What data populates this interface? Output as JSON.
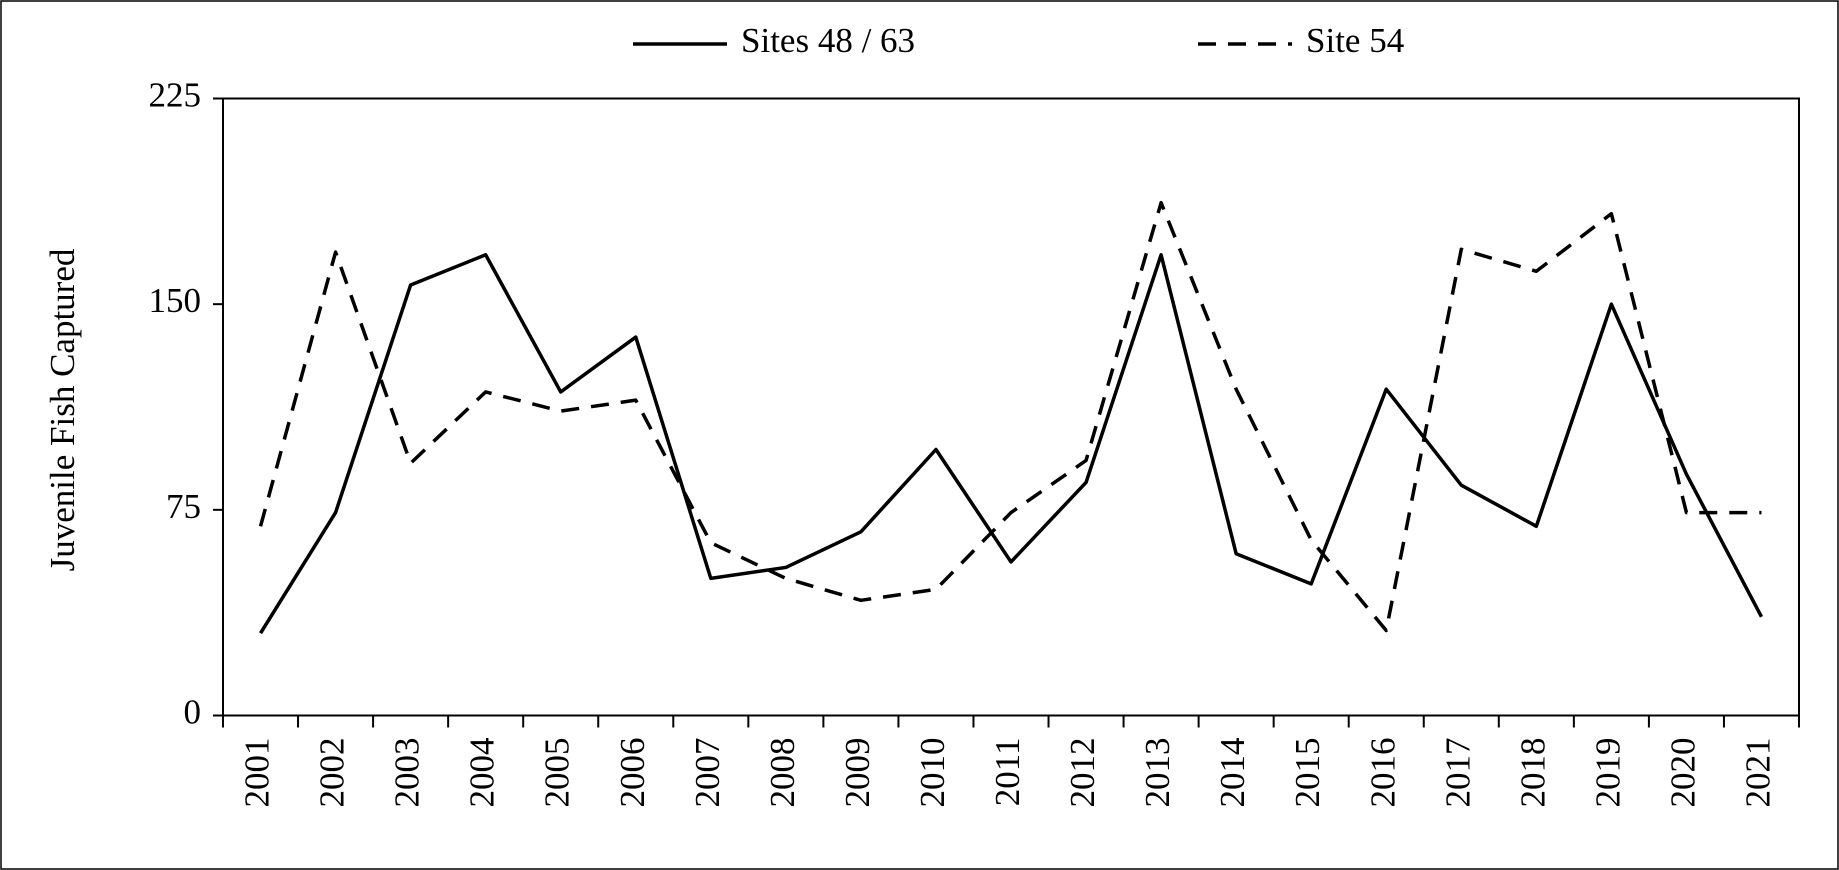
{
  "chart_data": {
    "type": "line",
    "y_label": "Juvenile Fish Captured",
    "categories": [
      "2001",
      "2002",
      "2003",
      "2004",
      "2005",
      "2006",
      "2007",
      "2008",
      "2009",
      "2010",
      "2011",
      "2012",
      "2013",
      "2014",
      "2015",
      "2016",
      "2017",
      "2018",
      "2019",
      "2020",
      "2021"
    ],
    "series": [
      {
        "name": "Sites 48 / 63",
        "color": "#000000",
        "line_style": "solid",
        "values": [
          30,
          74,
          157,
          168,
          118,
          138,
          50,
          54,
          67,
          97,
          56,
          85,
          168,
          59,
          48,
          119,
          84,
          69,
          150,
          88,
          36
        ]
      },
      {
        "name": "Site 54",
        "color": "#000000",
        "line_style": "dashed",
        "values": [
          69,
          169,
          92,
          118,
          111,
          115,
          63,
          50,
          42,
          46,
          74,
          93,
          187,
          119,
          64,
          31,
          170,
          162,
          183,
          74,
          74
        ]
      }
    ],
    "ylim": [
      0,
      225
    ],
    "yticks": [
      0,
      75,
      150,
      225
    ],
    "grid": false,
    "legend": "top"
  }
}
